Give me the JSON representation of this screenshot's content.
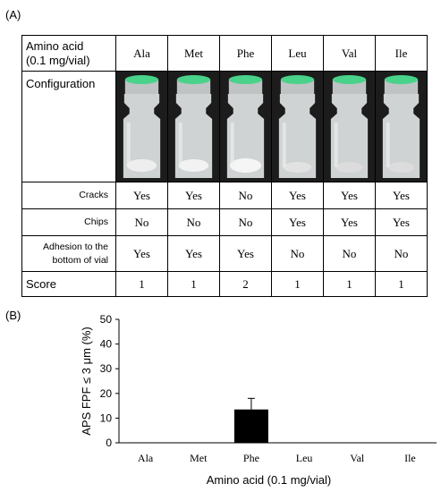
{
  "panel_a_label": "(A)",
  "panel_b_label": "(B)",
  "table": {
    "header_label_line1": "Amino acid",
    "header_label_line2": "(0.1 mg/vial)",
    "amino_acids": [
      "Ala",
      "Met",
      "Phe",
      "Leu",
      "Val",
      "Ile"
    ],
    "configuration_label": "Configuration",
    "rows": [
      {
        "label_line1": "Cracks",
        "label_line2": "",
        "values": [
          "Yes",
          "Yes",
          "No",
          "Yes",
          "Yes",
          "Yes"
        ]
      },
      {
        "label_line1": "Chips",
        "label_line2": "",
        "values": [
          "No",
          "No",
          "No",
          "Yes",
          "Yes",
          "Yes"
        ]
      },
      {
        "label_line1": "Adhesion to the",
        "label_line2": "bottom of vial",
        "values": [
          "Yes",
          "Yes",
          "Yes",
          "No",
          "No",
          "No"
        ]
      }
    ],
    "score_label": "Score",
    "scores": [
      "1",
      "1",
      "2",
      "1",
      "1",
      "1"
    ]
  },
  "chart_data": {
    "type": "bar",
    "categories": [
      "Ala",
      "Met",
      "Phe",
      "Leu",
      "Val",
      "Ile"
    ],
    "values": [
      0,
      0,
      13.5,
      0,
      0,
      0
    ],
    "errors": [
      0,
      0,
      4.5,
      0,
      0,
      0
    ],
    "xlabel": "Amino acid (0.1 mg/vial)",
    "ylabel": "APS FPF ≤ 3 μm (%)",
    "ylim": [
      0,
      50
    ],
    "yticks": [
      0,
      10,
      20,
      30,
      40,
      50
    ],
    "bar_color": "#000000"
  }
}
